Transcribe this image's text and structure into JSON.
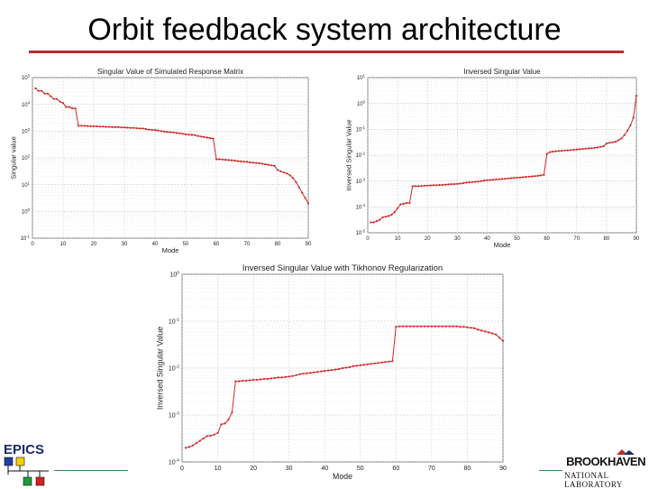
{
  "slide": {
    "title": "Orbit feedback system architecture"
  },
  "logos": {
    "left": "EPICS",
    "right_top": "BROOKHAVEN",
    "right_bottom": "NATIONAL LABORATORY"
  },
  "colors": {
    "title_rule": "#c0282d",
    "series": "#cc2a2a",
    "grid": "#dcdcdc",
    "epics_blue": "#1f3fa6",
    "epics_yellow": "#f2d200",
    "epics_green": "#1f9a3a",
    "epics_red": "#d42020"
  },
  "chart_data": [
    {
      "type": "line",
      "title": "Singular Value of Simulated Response Matrix",
      "xlabel": "Mode",
      "ylabel": "Singular value",
      "xlim": [
        0,
        90
      ],
      "xticks": [
        0,
        10,
        20,
        30,
        40,
        50,
        60,
        70,
        80,
        90
      ],
      "ylog": true,
      "ylim_exp": [
        -1,
        5
      ],
      "yticks_exp": [
        -1,
        0,
        1,
        2,
        3,
        4,
        5
      ],
      "grid": true,
      "points": [
        [
          1,
          4.6
        ],
        [
          2,
          4.5
        ],
        [
          3,
          4.5
        ],
        [
          4,
          4.4
        ],
        [
          5,
          4.4
        ],
        [
          6,
          4.3
        ],
        [
          7,
          4.2
        ],
        [
          8,
          4.2
        ],
        [
          9,
          4.1
        ],
        [
          10,
          4.05
        ],
        [
          11,
          3.9
        ],
        [
          12,
          3.9
        ],
        [
          13,
          3.85
        ],
        [
          14,
          3.85
        ],
        [
          15,
          3.2
        ],
        [
          16,
          3.2
        ],
        [
          17,
          3.2
        ],
        [
          18,
          3.19
        ],
        [
          19,
          3.18
        ],
        [
          20,
          3.18
        ],
        [
          21,
          3.18
        ],
        [
          22,
          3.17
        ],
        [
          23,
          3.17
        ],
        [
          24,
          3.16
        ],
        [
          25,
          3.16
        ],
        [
          26,
          3.15
        ],
        [
          27,
          3.15
        ],
        [
          28,
          3.15
        ],
        [
          29,
          3.14
        ],
        [
          30,
          3.14
        ],
        [
          31,
          3.13
        ],
        [
          32,
          3.12
        ],
        [
          33,
          3.12
        ],
        [
          34,
          3.11
        ],
        [
          35,
          3.1
        ],
        [
          36,
          3.1
        ],
        [
          37,
          3.08
        ],
        [
          38,
          3.06
        ],
        [
          39,
          3.05
        ],
        [
          40,
          3.04
        ],
        [
          41,
          3.02
        ],
        [
          42,
          3.0
        ],
        [
          43,
          2.98
        ],
        [
          44,
          2.97
        ],
        [
          45,
          2.96
        ],
        [
          46,
          2.95
        ],
        [
          47,
          2.93
        ],
        [
          48,
          2.92
        ],
        [
          49,
          2.9
        ],
        [
          50,
          2.88
        ],
        [
          51,
          2.87
        ],
        [
          52,
          2.86
        ],
        [
          53,
          2.85
        ],
        [
          54,
          2.82
        ],
        [
          55,
          2.8
        ],
        [
          56,
          2.78
        ],
        [
          57,
          2.76
        ],
        [
          58,
          2.74
        ],
        [
          59,
          2.72
        ],
        [
          60,
          1.95
        ],
        [
          61,
          1.95
        ],
        [
          62,
          1.94
        ],
        [
          63,
          1.93
        ],
        [
          64,
          1.92
        ],
        [
          65,
          1.91
        ],
        [
          66,
          1.9
        ],
        [
          67,
          1.88
        ],
        [
          68,
          1.87
        ],
        [
          69,
          1.86
        ],
        [
          70,
          1.85
        ],
        [
          71,
          1.83
        ],
        [
          72,
          1.82
        ],
        [
          73,
          1.81
        ],
        [
          74,
          1.8
        ],
        [
          75,
          1.78
        ],
        [
          76,
          1.76
        ],
        [
          77,
          1.74
        ],
        [
          78,
          1.72
        ],
        [
          79,
          1.7
        ],
        [
          80,
          1.55
        ],
        [
          81,
          1.5
        ],
        [
          82,
          1.45
        ],
        [
          83,
          1.42
        ],
        [
          84,
          1.35
        ],
        [
          85,
          1.25
        ],
        [
          86,
          1.1
        ],
        [
          87,
          0.9
        ],
        [
          88,
          0.7
        ],
        [
          89,
          0.5
        ],
        [
          90,
          0.3
        ]
      ]
    },
    {
      "type": "line",
      "title": "Inversed Singular Value",
      "xlabel": "Mode",
      "ylabel": "Inversed Singular Value",
      "xlim": [
        0,
        90
      ],
      "xticks": [
        0,
        10,
        20,
        30,
        40,
        50,
        60,
        70,
        80,
        90
      ],
      "ylog": true,
      "ylim_exp": [
        -5,
        1
      ],
      "yticks_exp": [
        -5,
        -4,
        -3,
        -2,
        -1,
        0,
        1
      ],
      "grid": true,
      "points": [
        [
          1,
          -4.6
        ],
        [
          2,
          -4.6
        ],
        [
          3,
          -4.55
        ],
        [
          4,
          -4.5
        ],
        [
          5,
          -4.4
        ],
        [
          6,
          -4.38
        ],
        [
          7,
          -4.35
        ],
        [
          8,
          -4.3
        ],
        [
          9,
          -4.2
        ],
        [
          10,
          -4.05
        ],
        [
          11,
          -3.9
        ],
        [
          12,
          -3.88
        ],
        [
          13,
          -3.85
        ],
        [
          14,
          -3.85
        ],
        [
          15,
          -3.2
        ],
        [
          16,
          -3.2
        ],
        [
          17,
          -3.2
        ],
        [
          18,
          -3.19
        ],
        [
          19,
          -3.18
        ],
        [
          20,
          -3.18
        ],
        [
          21,
          -3.17
        ],
        [
          22,
          -3.16
        ],
        [
          23,
          -3.16
        ],
        [
          24,
          -3.15
        ],
        [
          25,
          -3.15
        ],
        [
          26,
          -3.14
        ],
        [
          27,
          -3.13
        ],
        [
          28,
          -3.12
        ],
        [
          29,
          -3.12
        ],
        [
          30,
          -3.11
        ],
        [
          31,
          -3.1
        ],
        [
          32,
          -3.08
        ],
        [
          33,
          -3.06
        ],
        [
          34,
          -3.05
        ],
        [
          35,
          -3.04
        ],
        [
          36,
          -3.03
        ],
        [
          37,
          -3.02
        ],
        [
          38,
          -3.0
        ],
        [
          39,
          -2.98
        ],
        [
          40,
          -2.97
        ],
        [
          41,
          -2.96
        ],
        [
          42,
          -2.95
        ],
        [
          43,
          -2.94
        ],
        [
          44,
          -2.93
        ],
        [
          45,
          -2.92
        ],
        [
          46,
          -2.91
        ],
        [
          47,
          -2.9
        ],
        [
          48,
          -2.89
        ],
        [
          49,
          -2.88
        ],
        [
          50,
          -2.87
        ],
        [
          51,
          -2.86
        ],
        [
          52,
          -2.85
        ],
        [
          53,
          -2.84
        ],
        [
          54,
          -2.83
        ],
        [
          55,
          -2.82
        ],
        [
          56,
          -2.81
        ],
        [
          57,
          -2.8
        ],
        [
          58,
          -2.78
        ],
        [
          59,
          -2.76
        ],
        [
          60,
          -1.95
        ],
        [
          61,
          -1.88
        ],
        [
          62,
          -1.86
        ],
        [
          63,
          -1.85
        ],
        [
          64,
          -1.84
        ],
        [
          65,
          -1.83
        ],
        [
          66,
          -1.82
        ],
        [
          67,
          -1.81
        ],
        [
          68,
          -1.8
        ],
        [
          69,
          -1.79
        ],
        [
          70,
          -1.78
        ],
        [
          71,
          -1.77
        ],
        [
          72,
          -1.76
        ],
        [
          73,
          -1.75
        ],
        [
          74,
          -1.74
        ],
        [
          75,
          -1.73
        ],
        [
          76,
          -1.72
        ],
        [
          77,
          -1.7
        ],
        [
          78,
          -1.68
        ],
        [
          79,
          -1.65
        ],
        [
          80,
          -1.55
        ],
        [
          81,
          -1.52
        ],
        [
          82,
          -1.5
        ],
        [
          83,
          -1.48
        ],
        [
          84,
          -1.42
        ],
        [
          85,
          -1.35
        ],
        [
          86,
          -1.22
        ],
        [
          87,
          -1.05
        ],
        [
          88,
          -0.85
        ],
        [
          89,
          -0.55
        ],
        [
          90,
          0.3
        ]
      ]
    },
    {
      "type": "line",
      "title": "Inversed Singular Value with Tikhonov Regularization",
      "xlabel": "Mode",
      "ylabel": "Inversed Singular Value",
      "xlim": [
        0,
        90
      ],
      "xticks": [
        0,
        10,
        20,
        30,
        40,
        50,
        60,
        70,
        80,
        90
      ],
      "ylog": true,
      "ylim_exp": [
        -4,
        0
      ],
      "yticks_exp": [
        -4,
        -3,
        -2,
        -1,
        0
      ],
      "grid": true,
      "points": [
        [
          1,
          -3.7
        ],
        [
          2,
          -3.68
        ],
        [
          3,
          -3.65
        ],
        [
          4,
          -3.6
        ],
        [
          5,
          -3.55
        ],
        [
          6,
          -3.5
        ],
        [
          7,
          -3.45
        ],
        [
          8,
          -3.44
        ],
        [
          9,
          -3.42
        ],
        [
          10,
          -3.38
        ],
        [
          11,
          -3.2
        ],
        [
          12,
          -3.18
        ],
        [
          13,
          -3.1
        ],
        [
          14,
          -2.95
        ],
        [
          15,
          -2.28
        ],
        [
          16,
          -2.28
        ],
        [
          17,
          -2.27
        ],
        [
          18,
          -2.27
        ],
        [
          19,
          -2.26
        ],
        [
          20,
          -2.25
        ],
        [
          21,
          -2.25
        ],
        [
          22,
          -2.24
        ],
        [
          23,
          -2.23
        ],
        [
          24,
          -2.23
        ],
        [
          25,
          -2.22
        ],
        [
          26,
          -2.21
        ],
        [
          27,
          -2.2
        ],
        [
          28,
          -2.2
        ],
        [
          29,
          -2.19
        ],
        [
          30,
          -2.18
        ],
        [
          31,
          -2.17
        ],
        [
          32,
          -2.15
        ],
        [
          33,
          -2.13
        ],
        [
          34,
          -2.12
        ],
        [
          35,
          -2.11
        ],
        [
          36,
          -2.1
        ],
        [
          37,
          -2.09
        ],
        [
          38,
          -2.08
        ],
        [
          39,
          -2.07
        ],
        [
          40,
          -2.06
        ],
        [
          41,
          -2.05
        ],
        [
          42,
          -2.04
        ],
        [
          43,
          -2.03
        ],
        [
          44,
          -2.02
        ],
        [
          45,
          -2.0
        ],
        [
          46,
          -1.99
        ],
        [
          47,
          -1.98
        ],
        [
          48,
          -1.96
        ],
        [
          49,
          -1.95
        ],
        [
          50,
          -1.94
        ],
        [
          51,
          -1.93
        ],
        [
          52,
          -1.92
        ],
        [
          53,
          -1.91
        ],
        [
          54,
          -1.9
        ],
        [
          55,
          -1.89
        ],
        [
          56,
          -1.88
        ],
        [
          57,
          -1.87
        ],
        [
          58,
          -1.86
        ],
        [
          59,
          -1.85
        ],
        [
          60,
          -1.12
        ],
        [
          61,
          -1.11
        ],
        [
          62,
          -1.11
        ],
        [
          63,
          -1.11
        ],
        [
          64,
          -1.11
        ],
        [
          65,
          -1.11
        ],
        [
          66,
          -1.11
        ],
        [
          67,
          -1.11
        ],
        [
          68,
          -1.11
        ],
        [
          69,
          -1.11
        ],
        [
          70,
          -1.11
        ],
        [
          71,
          -1.11
        ],
        [
          72,
          -1.11
        ],
        [
          73,
          -1.11
        ],
        [
          74,
          -1.11
        ],
        [
          75,
          -1.11
        ],
        [
          76,
          -1.11
        ],
        [
          77,
          -1.11
        ],
        [
          78,
          -1.12
        ],
        [
          79,
          -1.12
        ],
        [
          80,
          -1.13
        ],
        [
          81,
          -1.14
        ],
        [
          82,
          -1.15
        ],
        [
          83,
          -1.18
        ],
        [
          84,
          -1.2
        ],
        [
          85,
          -1.22
        ],
        [
          86,
          -1.24
        ],
        [
          87,
          -1.26
        ],
        [
          88,
          -1.28
        ],
        [
          89,
          -1.35
        ],
        [
          90,
          -1.42
        ]
      ]
    }
  ]
}
